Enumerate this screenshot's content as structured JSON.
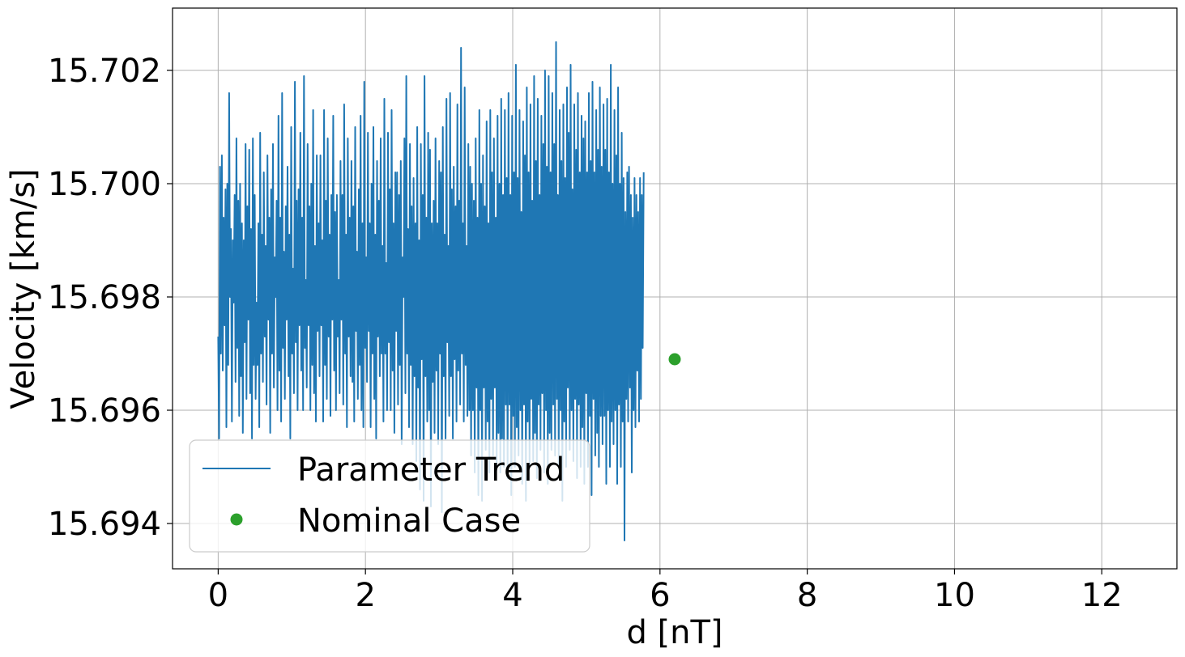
{
  "chart_data": {
    "type": "line",
    "title": "",
    "xlabel": "d [nT]",
    "ylabel": "Velocity [km/s]",
    "xlim": [
      -0.62,
      13.02
    ],
    "ylim": [
      15.6932,
      15.7031
    ],
    "xticks": [
      0,
      2,
      4,
      6,
      8,
      10,
      12
    ],
    "xtick_labels": [
      "0",
      "2",
      "4",
      "6",
      "8",
      "10",
      "12"
    ],
    "yticks": [
      15.694,
      15.696,
      15.698,
      15.7,
      15.702
    ],
    "ytick_labels": [
      "15.694",
      "15.696",
      "15.698",
      "15.700",
      "15.702"
    ],
    "grid": true,
    "legend_placement": "lower-left",
    "series": [
      {
        "name": "Parameter Trend",
        "kind": "line",
        "color": "#1f77b4",
        "x_start": 0,
        "x_step": 0.0124,
        "y": [
          15.6973,
          15.6955,
          15.7003,
          15.697,
          15.7005,
          15.6967,
          15.6994,
          15.6975,
          15.6999,
          15.6957,
          15.7,
          15.6968,
          15.7016,
          15.698,
          15.6992,
          15.6958,
          15.699,
          15.6979,
          15.6998,
          15.6965,
          15.7008,
          15.6971,
          15.6997,
          15.6959,
          15.7,
          15.6966,
          15.6993,
          15.6956,
          15.699,
          15.6972,
          15.7007,
          15.6962,
          15.6996,
          15.6976,
          15.7006,
          15.6963,
          15.6992,
          15.6955,
          15.7008,
          15.6968,
          15.6998,
          15.6962,
          15.6979,
          15.6968,
          15.6993,
          15.6957,
          15.7009,
          15.697,
          15.6991,
          15.6965,
          15.7002,
          15.6973,
          15.6989,
          15.6961,
          15.7005,
          15.6976,
          15.6994,
          15.6956,
          15.6999,
          15.697,
          15.7007,
          15.6964,
          15.6987,
          15.698,
          15.6997,
          15.696,
          15.7012,
          15.6967,
          15.6994,
          15.6958,
          15.7016,
          15.6971,
          15.6988,
          15.6962,
          15.6996,
          15.6976,
          15.7003,
          15.6966,
          15.6991,
          15.6955,
          15.701,
          15.697,
          15.6985,
          15.6963,
          15.7018,
          15.6972,
          15.6997,
          15.696,
          15.6999,
          15.6975,
          15.7009,
          15.6967,
          15.6994,
          15.696,
          15.7019,
          15.6971,
          15.6983,
          15.6964,
          15.7007,
          15.6975,
          15.6996,
          15.696,
          15.7,
          15.6968,
          15.7013,
          15.6963,
          15.6989,
          15.6958,
          15.7005,
          15.6974,
          15.6993,
          15.6966,
          15.7005,
          15.6975,
          15.699,
          15.6958,
          15.7013,
          15.6968,
          15.6997,
          15.6962,
          15.7008,
          15.6973,
          15.6991,
          15.6959,
          15.6998,
          15.6976,
          15.7012,
          15.6967,
          15.6995,
          15.696,
          15.6998,
          15.6973,
          15.6983,
          15.6963,
          15.7004,
          15.6976,
          15.6998,
          15.6961,
          15.7014,
          15.697,
          15.6991,
          15.6957,
          15.7008,
          15.6973,
          15.6994,
          15.6966,
          15.7004,
          15.6965,
          15.6996,
          15.6958,
          15.701,
          15.6974,
          15.6988,
          15.6962,
          15.6999,
          15.6968,
          15.7012,
          15.696,
          15.6993,
          15.6957,
          15.7018,
          15.6971,
          15.6987,
          15.6965,
          15.7009,
          15.6974,
          15.6993,
          15.6957,
          15.7,
          15.697,
          15.701,
          15.6962,
          15.6991,
          15.6955,
          15.7004,
          15.6973,
          15.6997,
          15.6966,
          15.7008,
          15.697,
          15.6989,
          15.6958,
          15.7015,
          15.697,
          15.6986,
          15.696,
          15.7009,
          15.6972,
          15.6999,
          15.696,
          15.7013,
          15.6967,
          15.6993,
          15.6956,
          15.7002,
          15.6974,
          15.7002,
          15.6961,
          15.6998,
          15.6968,
          15.7004,
          15.6954,
          15.6987,
          15.698,
          15.7008,
          15.6963,
          15.7019,
          15.697,
          15.6992,
          15.6957,
          15.7007,
          15.6968,
          15.6996,
          15.6954,
          15.7001,
          15.6966,
          15.6993,
          15.6951,
          15.701,
          15.6964,
          15.699,
          15.6946,
          15.7007,
          15.6969,
          15.6998,
          15.6944,
          15.7019,
          15.6966,
          15.6994,
          15.6958,
          15.7009,
          15.696,
          15.7006,
          15.6943,
          15.6993,
          15.6965,
          15.6997,
          15.6956,
          15.7008,
          15.6967,
          15.6993,
          15.6954,
          15.7004,
          15.697,
          15.7002,
          15.6942,
          15.701,
          15.6966,
          15.6991,
          15.6955,
          15.7015,
          15.6972,
          15.6989,
          15.6959,
          15.7016,
          15.6966,
          15.6999,
          15.6955,
          15.7003,
          15.6969,
          15.6996,
          15.6958,
          15.7014,
          15.6967,
          15.6997,
          15.6961,
          15.7024,
          15.697,
          15.6993,
          15.6958,
          15.7017,
          15.6968,
          15.6989,
          15.6959,
          15.7007,
          15.696,
          15.7003,
          15.6952,
          15.7,
          15.696,
          15.6997,
          15.6949,
          15.7008,
          15.6964,
          15.6994,
          15.6945,
          15.7013,
          15.696,
          15.7,
          15.6944,
          15.7005,
          15.6964,
          15.6996,
          15.6953,
          15.7011,
          15.6958,
          15.6993,
          15.6949,
          15.7013,
          15.6962,
          15.7002,
          15.6952,
          15.7008,
          15.6964,
          15.6994,
          15.695,
          15.7012,
          15.6956,
          15.7,
          15.6949,
          15.7015,
          15.6955,
          15.6998,
          15.695,
          15.7013,
          15.6961,
          15.7001,
          15.6948,
          15.7016,
          15.6961,
          15.6998,
          15.6945,
          15.7012,
          15.6959,
          15.7002,
          15.695,
          15.7021,
          15.6957,
          15.7001,
          15.6952,
          15.7013,
          15.696,
          15.6995,
          15.6947,
          15.7011,
          15.6961,
          15.7005,
          15.6944,
          15.7017,
          15.6958,
          15.7002,
          15.695,
          15.7014,
          15.6962,
          15.6997,
          15.6951,
          15.7019,
          15.6956,
          15.7004,
          15.6948,
          15.7015,
          15.6961,
          15.6998,
          15.6953,
          15.7012,
          15.6963,
          15.7007,
          15.6949,
          15.702,
          15.696,
          15.7003,
          15.6947,
          15.7019,
          15.6956,
          15.7002,
          15.6953,
          15.7016,
          15.6961,
          15.7007,
          15.6952,
          15.7025,
          15.6962,
          15.6998,
          15.695,
          15.7013,
          15.696,
          15.7004,
          15.6944,
          15.7014,
          15.6958,
          15.7001,
          15.695,
          15.7017,
          15.6964,
          15.7009,
          15.6953,
          15.7021,
          15.696,
          15.6999,
          15.6951,
          15.7014,
          15.6962,
          15.7006,
          15.6948,
          15.7016,
          15.6961,
          15.7002,
          15.695,
          15.7012,
          15.6957,
          15.7008,
          15.6947,
          15.7011,
          15.6963,
          15.7002,
          15.695,
          15.7016,
          15.6959,
          15.7004,
          15.6945,
          15.7018,
          15.6962,
          15.7002,
          15.6952,
          15.7013,
          15.6956,
          15.7006,
          15.695,
          15.7017,
          15.6959,
          15.7003,
          15.6954,
          15.7014,
          15.6959,
          15.7006,
          15.6947,
          15.7015,
          15.696,
          15.7002,
          15.695,
          15.7021,
          15.6958,
          15.7,
          15.6954,
          15.7013,
          15.696,
          15.7005,
          15.6947,
          15.7017,
          15.6961,
          15.7,
          15.695,
          15.7009,
          15.6958,
          15.7001,
          15.6937,
          15.6995,
          15.6962,
          15.7002,
          15.6958,
          15.7003,
          15.6964,
          15.6998,
          15.6949,
          15.6994,
          15.696,
          15.7001,
          15.6957,
          15.6998,
          15.6967,
          15.6995,
          15.6958,
          15.7001,
          15.6962,
          15.6998,
          15.6971,
          15.7002
        ]
      },
      {
        "name": "Nominal Case",
        "kind": "marker",
        "color": "#2ca02c",
        "x": [
          6.2
        ],
        "y": [
          15.6969
        ]
      }
    ]
  }
}
